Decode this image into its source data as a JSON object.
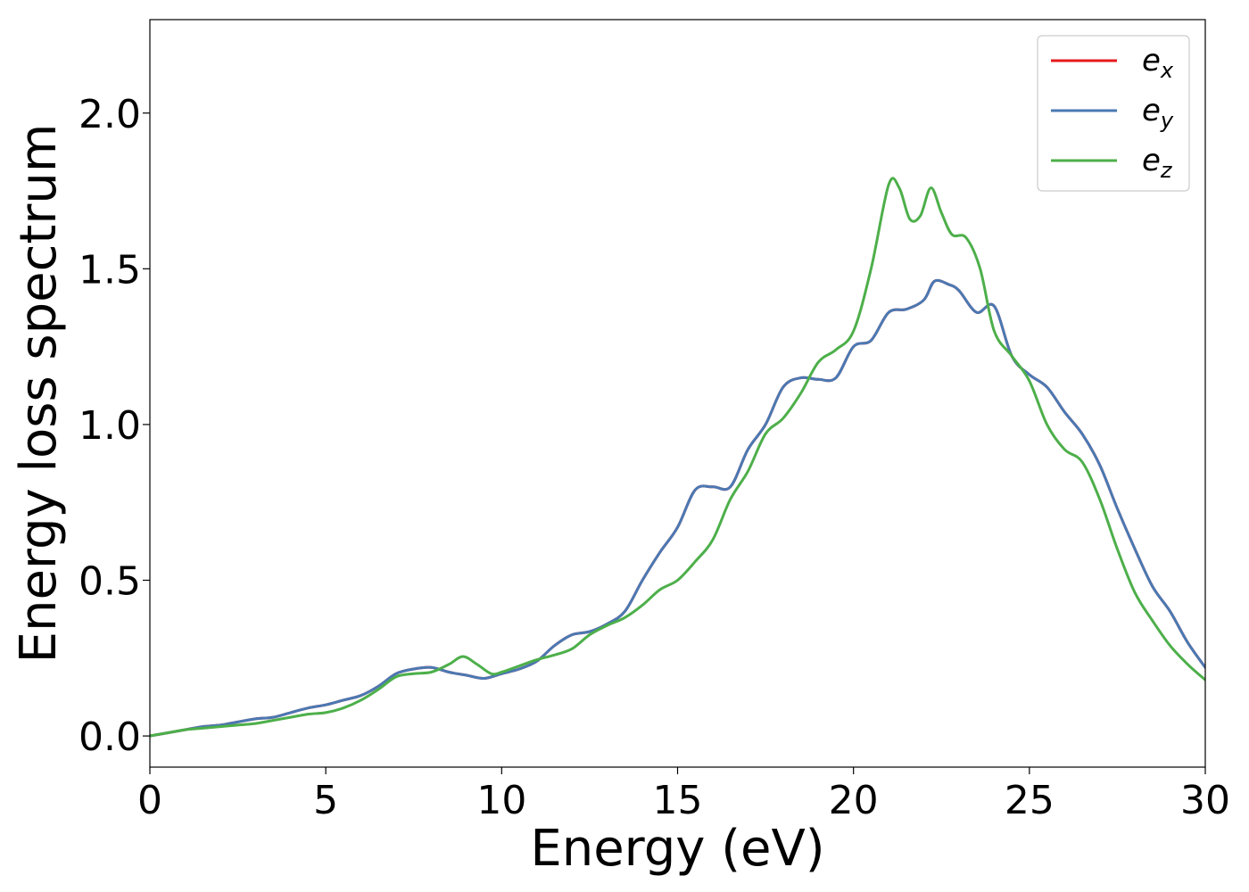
{
  "chart_data": {
    "type": "line",
    "title": "",
    "xlabel": "Energy (eV)",
    "ylabel": "Energy loss spectrum",
    "xlim": [
      0,
      30
    ],
    "ylim": [
      -0.1,
      2.3
    ],
    "xticks": [
      0,
      5,
      10,
      15,
      20,
      25,
      30
    ],
    "xtick_labels": [
      "0",
      "5",
      "10",
      "15",
      "20",
      "25",
      "30"
    ],
    "yticks": [
      0.0,
      0.5,
      1.0,
      1.5,
      2.0
    ],
    "ytick_labels": [
      "0.0",
      "0.5",
      "1.0",
      "1.5",
      "2.0"
    ],
    "grid": false,
    "legend_position": "top-right",
    "series": [
      {
        "name": "e_x",
        "legend_main": "e",
        "legend_sub": "x",
        "color": "#e41a1c",
        "x": [
          0,
          0.5,
          1,
          1.5,
          2,
          2.5,
          3,
          3.5,
          4,
          4.5,
          5,
          5.5,
          6,
          6.5,
          7,
          7.5,
          8,
          8.5,
          9,
          9.5,
          10,
          10.5,
          11,
          11.5,
          12,
          12.5,
          13,
          13.5,
          14,
          14.5,
          15,
          15.5,
          16,
          16.5,
          17,
          17.5,
          18,
          18.5,
          19,
          19.5,
          20,
          20.5,
          21,
          21.5,
          22,
          22.3,
          22.7,
          23,
          23.5,
          24,
          24.5,
          25,
          25.5,
          26,
          26.5,
          27,
          27.5,
          28,
          28.5,
          29,
          29.5,
          30
        ],
        "y": [
          0.0,
          0.01,
          0.02,
          0.03,
          0.035,
          0.045,
          0.055,
          0.06,
          0.075,
          0.09,
          0.1,
          0.115,
          0.13,
          0.16,
          0.2,
          0.215,
          0.22,
          0.205,
          0.195,
          0.185,
          0.2,
          0.215,
          0.24,
          0.29,
          0.325,
          0.335,
          0.36,
          0.4,
          0.5,
          0.59,
          0.67,
          0.79,
          0.8,
          0.8,
          0.92,
          1.0,
          1.12,
          1.15,
          1.145,
          1.15,
          1.25,
          1.27,
          1.36,
          1.37,
          1.4,
          1.46,
          1.45,
          1.43,
          1.36,
          1.38,
          1.22,
          1.16,
          1.12,
          1.04,
          0.97,
          0.87,
          0.73,
          0.6,
          0.48,
          0.4,
          0.3,
          0.22
        ]
      },
      {
        "name": "e_y",
        "legend_main": "e",
        "legend_sub": "y",
        "color": "#4a79b3",
        "x": [
          0,
          0.5,
          1,
          1.5,
          2,
          2.5,
          3,
          3.5,
          4,
          4.5,
          5,
          5.5,
          6,
          6.5,
          7,
          7.5,
          8,
          8.5,
          9,
          9.5,
          10,
          10.5,
          11,
          11.5,
          12,
          12.5,
          13,
          13.5,
          14,
          14.5,
          15,
          15.5,
          16,
          16.5,
          17,
          17.5,
          18,
          18.5,
          19,
          19.5,
          20,
          20.5,
          21,
          21.5,
          22,
          22.3,
          22.7,
          23,
          23.5,
          24,
          24.5,
          25,
          25.5,
          26,
          26.5,
          27,
          27.5,
          28,
          28.5,
          29,
          29.5,
          30
        ],
        "y": [
          0.0,
          0.01,
          0.02,
          0.03,
          0.035,
          0.045,
          0.055,
          0.06,
          0.075,
          0.09,
          0.1,
          0.115,
          0.13,
          0.16,
          0.2,
          0.215,
          0.22,
          0.205,
          0.195,
          0.185,
          0.2,
          0.215,
          0.24,
          0.29,
          0.325,
          0.335,
          0.36,
          0.4,
          0.5,
          0.59,
          0.67,
          0.79,
          0.8,
          0.8,
          0.92,
          1.0,
          1.12,
          1.15,
          1.145,
          1.15,
          1.25,
          1.27,
          1.36,
          1.37,
          1.4,
          1.46,
          1.45,
          1.43,
          1.36,
          1.38,
          1.22,
          1.16,
          1.12,
          1.04,
          0.97,
          0.87,
          0.73,
          0.6,
          0.48,
          0.4,
          0.3,
          0.22
        ]
      },
      {
        "name": "e_z",
        "legend_main": "e",
        "legend_sub": "z",
        "color": "#4daf4a",
        "x": [
          0,
          0.5,
          1,
          1.5,
          2,
          2.5,
          3,
          3.5,
          4,
          4.5,
          5,
          5.5,
          6,
          6.5,
          7,
          7.5,
          8,
          8.5,
          8.9,
          9.3,
          9.7,
          10,
          10.5,
          11,
          11.5,
          12,
          12.5,
          13,
          13.5,
          14,
          14.5,
          15,
          15.5,
          16,
          16.5,
          17,
          17.5,
          18,
          18.5,
          19,
          19.5,
          20,
          20.5,
          21,
          21.3,
          21.6,
          21.9,
          22.2,
          22.5,
          22.8,
          23.2,
          23.6,
          24,
          24.5,
          25,
          25.5,
          26,
          26.5,
          27,
          27.5,
          28,
          28.5,
          29,
          29.5,
          30
        ],
        "y": [
          0.0,
          0.01,
          0.02,
          0.025,
          0.03,
          0.035,
          0.04,
          0.05,
          0.06,
          0.07,
          0.075,
          0.09,
          0.115,
          0.15,
          0.19,
          0.2,
          0.205,
          0.23,
          0.255,
          0.23,
          0.2,
          0.205,
          0.225,
          0.245,
          0.26,
          0.28,
          0.325,
          0.355,
          0.38,
          0.42,
          0.47,
          0.5,
          0.56,
          0.63,
          0.76,
          0.85,
          0.97,
          1.02,
          1.1,
          1.2,
          1.24,
          1.3,
          1.5,
          1.77,
          1.76,
          1.66,
          1.67,
          1.76,
          1.68,
          1.61,
          1.6,
          1.5,
          1.3,
          1.22,
          1.14,
          1.0,
          0.92,
          0.88,
          0.76,
          0.6,
          0.46,
          0.37,
          0.29,
          0.23,
          0.18
        ]
      }
    ]
  }
}
